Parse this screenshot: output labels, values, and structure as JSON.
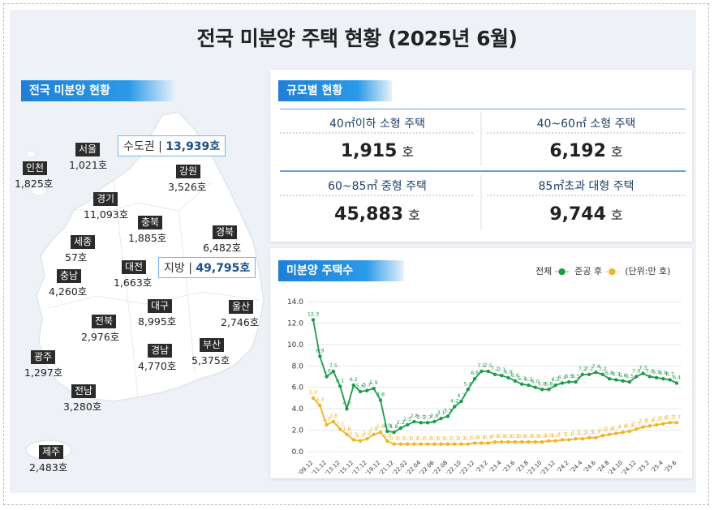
{
  "title": "전국 미분양 주택 현황  (2025년 6월)",
  "map_section": {
    "header": "전국 미분양 현황",
    "capital": {
      "label": "수도권",
      "value": "13,939호"
    },
    "local": {
      "label": "지방",
      "value": "49,795호"
    },
    "regions": [
      {
        "name": "서울",
        "value": "1,021호"
      },
      {
        "name": "인천",
        "value": "1,825호"
      },
      {
        "name": "강원",
        "value": "3,526호"
      },
      {
        "name": "경기",
        "value": "11,093호"
      },
      {
        "name": "충북",
        "value": "1,885호"
      },
      {
        "name": "경북",
        "value": "6,482호"
      },
      {
        "name": "세종",
        "value": "57호"
      },
      {
        "name": "충남",
        "value": "4,260호"
      },
      {
        "name": "대전",
        "value": "1,663호"
      },
      {
        "name": "대구",
        "value": "8,995호"
      },
      {
        "name": "울산",
        "value": "2,746호"
      },
      {
        "name": "전북",
        "value": "2,976호"
      },
      {
        "name": "경남",
        "value": "4,770호"
      },
      {
        "name": "부산",
        "value": "5,375호"
      },
      {
        "name": "광주",
        "value": "1,297호"
      },
      {
        "name": "전남",
        "value": "3,280호"
      },
      {
        "name": "제주",
        "value": "2,483호"
      }
    ]
  },
  "size_section": {
    "header": "규모별 현황",
    "cells": [
      {
        "label": "40㎡이하 소형 주택",
        "value": "1,915",
        "unit": "호"
      },
      {
        "label": "40~60㎡ 소형 주택",
        "value": "6,192",
        "unit": "호"
      },
      {
        "label": "60~85㎡ 중형 주택",
        "value": "45,883",
        "unit": "호"
      },
      {
        "label": "85㎡초과 대형 주택",
        "value": "9,744",
        "unit": "호"
      }
    ]
  },
  "chart_section": {
    "header": "미분양 주택수",
    "legend_total": "전체",
    "legend_completed": "준공 후",
    "unit_note": "(단위:만 호)"
  },
  "colors": {
    "total": "#1f9a4c",
    "completed": "#f0b429",
    "accent": "#1f7fd6"
  },
  "chart_data": {
    "type": "line",
    "ylim": [
      0,
      14
    ],
    "yticks": [
      "0.0",
      "2.0",
      "4.0",
      "6.0",
      "8.0",
      "10.0",
      "12.0",
      "14.0"
    ],
    "xticks": [
      "'09.12",
      "'11.12",
      "'13.12",
      "'15.12",
      "'17.12",
      "'19.12",
      "'21.12",
      "'22.02",
      "'22.04",
      "'22.06",
      "'22.08",
      "'22.10",
      "'22.12",
      "'23.2",
      "'23.4",
      "'23.6",
      "'23.8",
      "'23.10",
      "'23.12",
      "'24.2",
      "'24.4",
      "'24.6",
      "'24.8",
      "'24.10",
      "'24.12",
      "'25.2",
      "'25.4",
      "'25.6"
    ],
    "series": [
      {
        "name": "전체",
        "values": [
          12.3,
          8.9,
          7.0,
          7.5,
          6.1,
          4.0,
          6.2,
          5.6,
          5.7,
          5.9,
          4.8,
          1.9,
          1.8,
          2.2,
          2.5,
          2.8,
          2.7,
          2.7,
          2.8,
          3.1,
          3.3,
          4.2,
          4.7,
          5.8,
          6.8,
          7.5,
          7.5,
          7.2,
          7.1,
          6.9,
          6.6,
          6.3,
          6.2,
          6.0,
          5.8,
          5.8,
          6.2,
          6.4,
          6.5,
          6.5,
          7.2,
          7.2,
          7.4,
          7.2,
          6.8,
          6.7,
          6.6,
          6.5,
          7.0,
          7.3,
          7.0,
          6.9,
          6.8,
          6.7,
          6.4
        ]
      },
      {
        "name": "준공 후",
        "values": [
          5.0,
          4.3,
          2.5,
          2.8,
          2.1,
          1.6,
          1.1,
          1.0,
          1.2,
          1.6,
          1.8,
          1.0,
          0.7,
          0.7,
          0.7,
          0.7,
          0.7,
          0.7,
          0.7,
          0.7,
          0.7,
          0.7,
          0.7,
          0.7,
          0.8,
          0.8,
          0.8,
          0.9,
          0.9,
          0.9,
          0.9,
          0.9,
          0.9,
          0.9,
          0.9,
          1.0,
          1.0,
          1.1,
          1.1,
          1.2,
          1.2,
          1.3,
          1.3,
          1.5,
          1.6,
          1.7,
          1.8,
          1.9,
          2.1,
          2.3,
          2.4,
          2.5,
          2.6,
          2.7,
          2.7
        ]
      }
    ]
  }
}
